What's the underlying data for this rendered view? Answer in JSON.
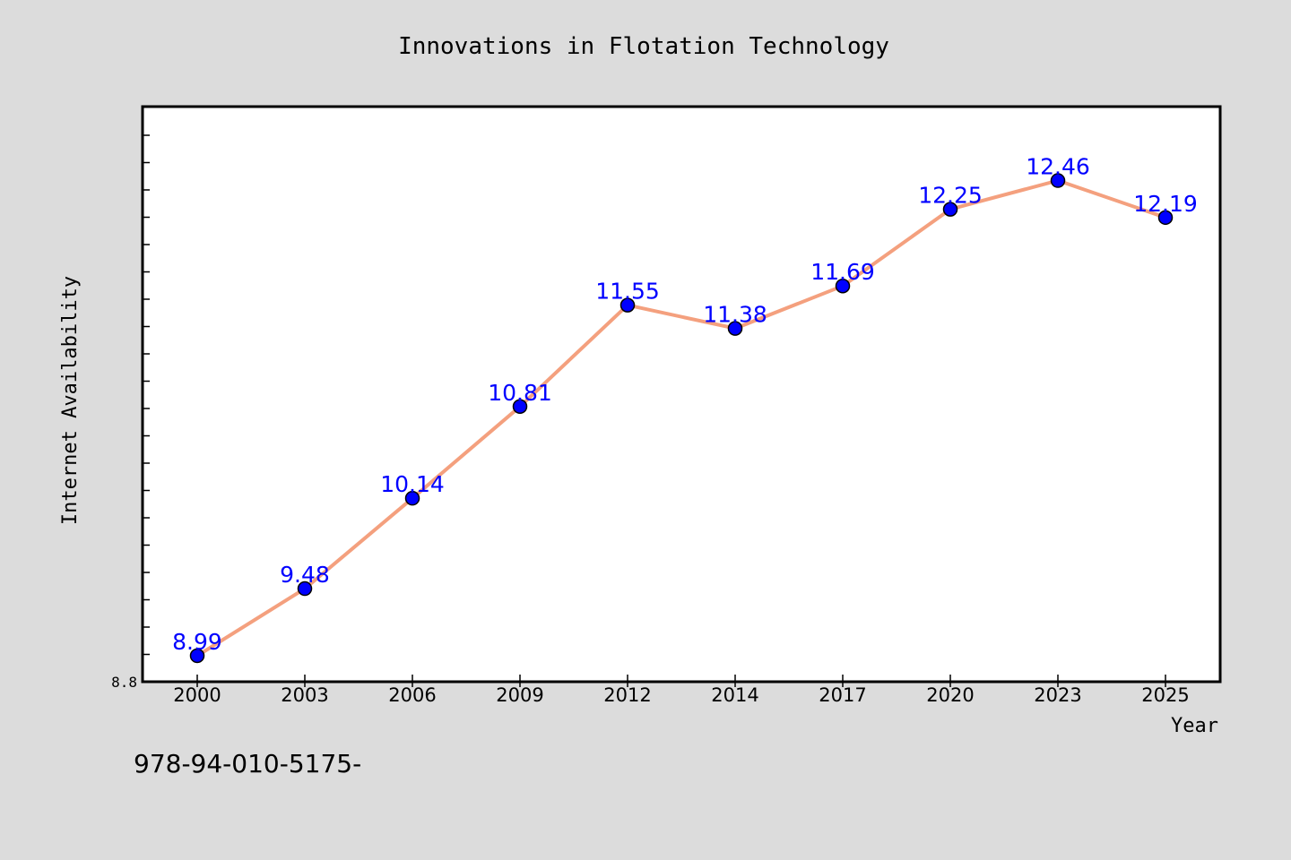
{
  "colors": {
    "background": "#dcdcdc",
    "plot_background": "#ffffff",
    "line": "#f4a07e",
    "marker": "#0000ff",
    "data_label": "#0000ff",
    "axis": "#000000"
  },
  "footer": {
    "text": "978-94-010-5175-"
  },
  "chart_data": {
    "type": "line",
    "title": "Innovations in Flotation Technology",
    "xlabel": "Year",
    "ylabel": "Internet Availability",
    "categories": [
      "2000",
      "2003",
      "2006",
      "2009",
      "2012",
      "2014",
      "2017",
      "2020",
      "2023",
      "2025"
    ],
    "series": [
      {
        "values": [
          8.99,
          9.48,
          10.14,
          10.81,
          11.55,
          11.38,
          11.69,
          12.25,
          12.46,
          12.19
        ],
        "labels": [
          "8.99",
          "9.48",
          "10.14",
          "10.81",
          "11.55",
          "11.38",
          "11.69",
          "12.25",
          "12.46",
          "12.19"
        ]
      }
    ],
    "ylim": [
      8.8,
      13.0
    ],
    "y_tick_labels": [
      "8.8"
    ],
    "grid": false,
    "legend": "none"
  }
}
